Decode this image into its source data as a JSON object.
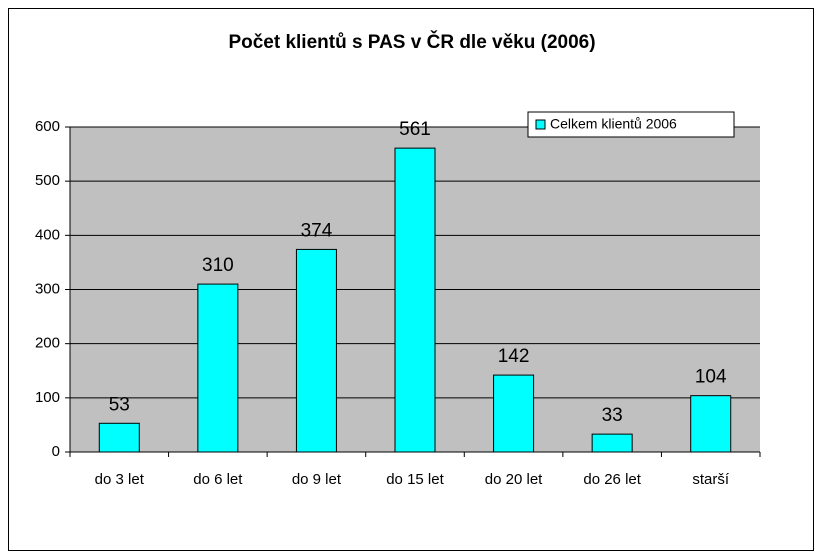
{
  "chart_data": {
    "type": "bar",
    "title": "Počet klientů s PAS v ČR dle věku (2006)",
    "categories": [
      "do 3 let",
      "do 6 let",
      "do 9 let",
      "do 15 let",
      "do 20 let",
      "do 26 let",
      "starší"
    ],
    "series": [
      {
        "name": "Celkem klientů 2006",
        "color": "#00ffff",
        "values": [
          53,
          310,
          374,
          561,
          142,
          33,
          104
        ]
      }
    ],
    "ylim": [
      0,
      600
    ],
    "yticks": [
      0,
      100,
      200,
      300,
      400,
      500,
      600
    ],
    "grid": true,
    "legend": "top-right"
  }
}
